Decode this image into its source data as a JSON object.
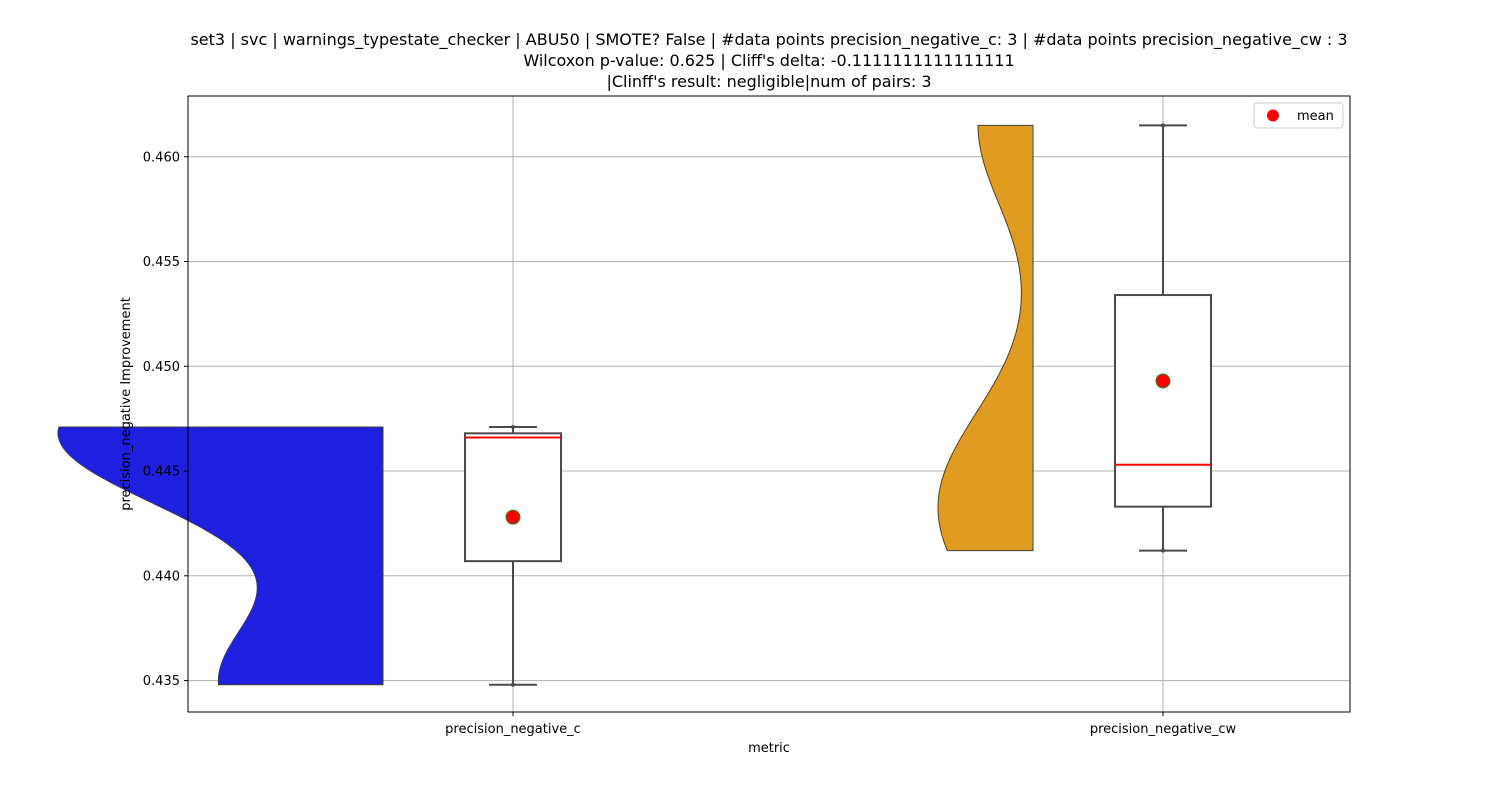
{
  "chart_data": {
    "type": "violin+box",
    "title_lines": [
      "set3 | svc | warnings_typestate_checker | ABU50 | SMOTE? False | #data points precision_negative_c: 3 | #data points precision_negative_cw : 3",
      "Wilcoxon p-value: 0.625 | Cliff's delta: -0.1111111111111111",
      "|Clinff's result: negligible|num of pairs: 3"
    ],
    "xlabel": "metric",
    "ylabel": "precision_negative Improvement",
    "ylim": [
      0.4335,
      0.4629
    ],
    "yticks": [
      "0.435",
      "0.440",
      "0.445",
      "0.450",
      "0.455",
      "0.460"
    ],
    "grid": true,
    "legend": {
      "placement": "top-right",
      "entries": [
        {
          "label": "mean",
          "color": "#ff0000"
        }
      ]
    },
    "categories": [
      "precision_negative_c",
      "precision_negative_cw"
    ],
    "series": [
      {
        "category": "precision_negative_c",
        "color": "#1f1fe0",
        "violin_side": "left",
        "violin_range": [
          0.4348,
          0.4471
        ],
        "box": {
          "whisker_low": 0.4348,
          "q1": 0.4407,
          "median": 0.4466,
          "q3": 0.4468,
          "whisker_high": 0.4471,
          "mean": 0.4428
        }
      },
      {
        "category": "precision_negative_cw",
        "color": "#e09c20",
        "violin_side": "left",
        "violin_range": [
          0.4412,
          0.4615
        ],
        "box": {
          "whisker_low": 0.4412,
          "q1": 0.4433,
          "median": 0.4453,
          "q3": 0.4534,
          "whisker_high": 0.4615,
          "mean": 0.4493
        }
      }
    ]
  }
}
